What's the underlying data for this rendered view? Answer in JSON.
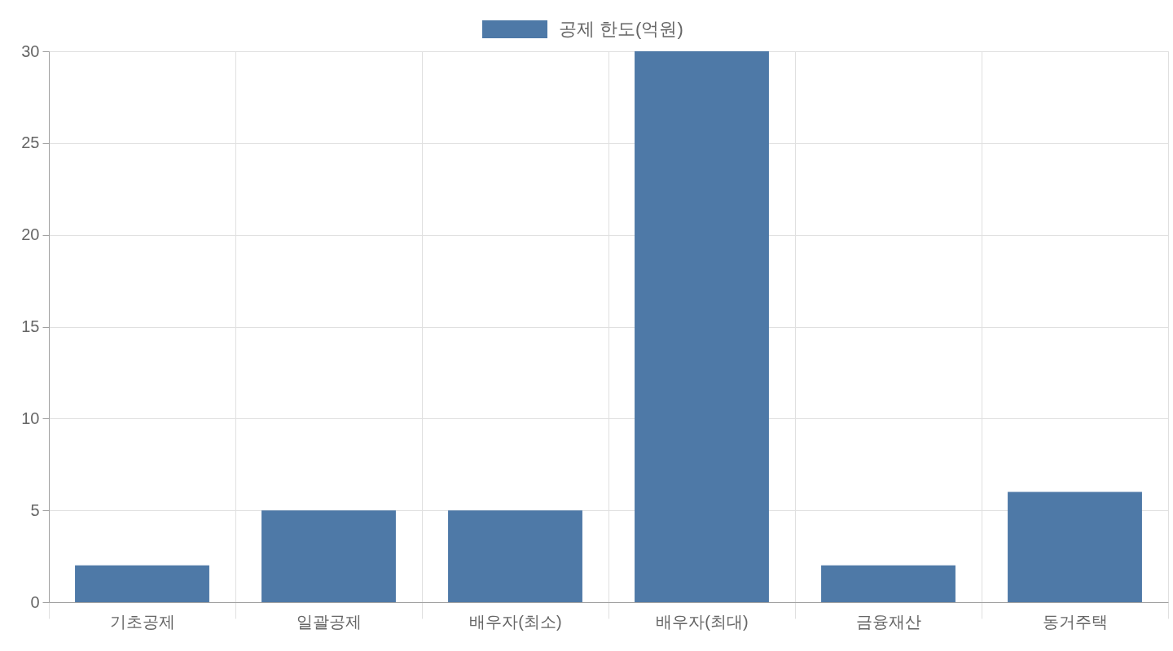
{
  "chart_data": {
    "type": "bar",
    "categories": [
      "기초공제",
      "일괄공제",
      "배우자(최소)",
      "배우자(최대)",
      "금융재산",
      "동거주택"
    ],
    "series": [
      {
        "name": "공제 한도(억원)",
        "color": "#4e79a7",
        "values": [
          2,
          5,
          5,
          30,
          2,
          6
        ]
      }
    ],
    "ylim": [
      0,
      30
    ],
    "yticks": [
      0,
      5,
      10,
      15,
      20,
      25,
      30
    ],
    "grid": true,
    "legend": "top"
  }
}
